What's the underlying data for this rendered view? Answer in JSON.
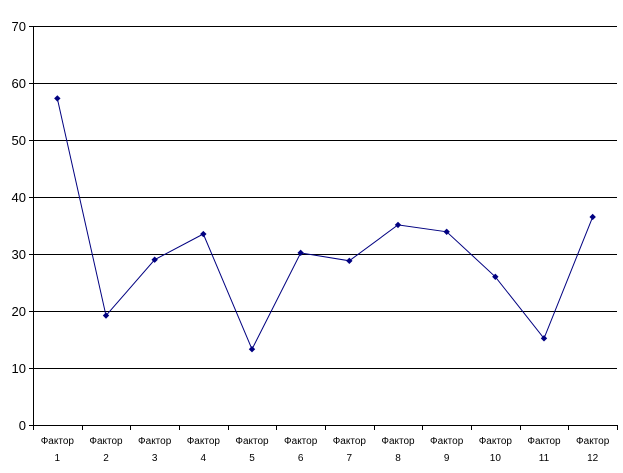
{
  "chart_data": {
    "type": "line",
    "categories": [
      [
        "Фактор",
        "1"
      ],
      [
        "Фактор",
        "2"
      ],
      [
        "Фактор",
        "3"
      ],
      [
        "Фактор",
        "4"
      ],
      [
        "Фактор",
        "5"
      ],
      [
        "Фактор",
        "6"
      ],
      [
        "Фактор",
        "7"
      ],
      [
        "Фактор",
        "8"
      ],
      [
        "Фактор",
        "9"
      ],
      [
        "Фактор",
        "10"
      ],
      [
        "Фактор",
        "11"
      ],
      [
        "Фактор",
        "12"
      ]
    ],
    "series": [
      {
        "values": [
          57.3,
          19.2,
          29.0,
          33.5,
          13.3,
          30.2,
          28.8,
          35.1,
          33.9,
          26.0,
          15.2,
          36.5
        ]
      }
    ],
    "ylim": [
      0,
      70
    ],
    "yticks": [
      0,
      10,
      20,
      30,
      40,
      50,
      60,
      70
    ],
    "grid": true,
    "legend": "none",
    "line_color": "#000080",
    "marker": "diamond"
  }
}
